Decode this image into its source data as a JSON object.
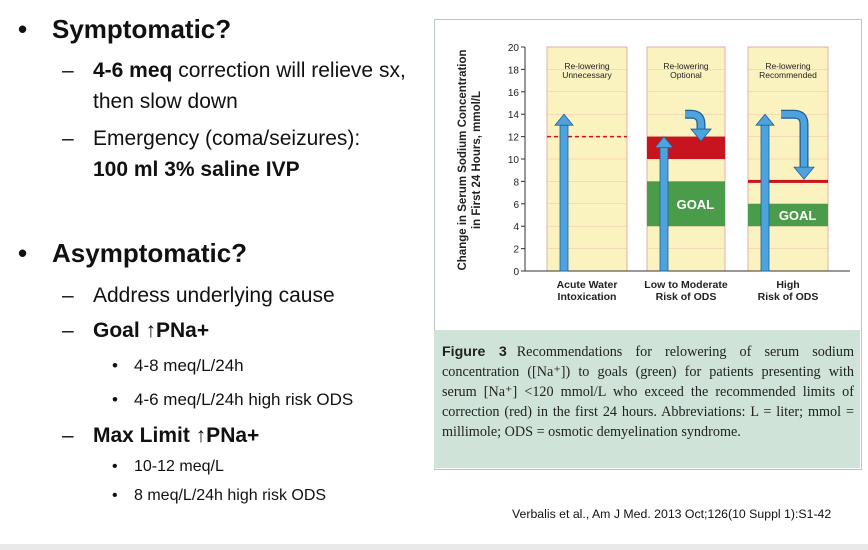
{
  "bullets": {
    "symptomatic": {
      "heading": "Symptomatic?",
      "items": [
        {
          "bold": "4-6 meq",
          "text": " correction will relieve sx, then slow down"
        },
        {
          "text": "Emergency (coma/seizures): ",
          "bold_after": "100 ml 3% saline IVP"
        }
      ]
    },
    "asymptomatic": {
      "heading": "Asymptomatic?",
      "item1": "Address underlying cause",
      "goal": {
        "label": "Goal ↑PNa+",
        "subs": [
          "4-8 meq/L/24h",
          "4-6 meq/L/24h high risk ODS"
        ]
      },
      "max": {
        "label": "Max Limit ↑PNa+",
        "subs": [
          "10-12 meq/L",
          "8 meq/L/24h high risk ODS"
        ]
      }
    },
    "bullet_glyph": "•",
    "dash_glyph": "–"
  },
  "chart_data": {
    "type": "bar",
    "ylabel": "Change in Serum Sodium Concentration in First 24 Hours, mmol/L",
    "ylabel_lines": [
      "Change in Serum Sodium Concentration",
      "in First 24 Hours, mmol/L"
    ],
    "ylim": [
      0,
      20
    ],
    "yticks": [
      "0",
      "2",
      "4",
      "6",
      "8",
      "10",
      "12",
      "14",
      "16",
      "18",
      "20"
    ],
    "categories": [
      {
        "lines": [
          "Acute Water",
          "Intoxication"
        ],
        "header": [
          "Re-lowering",
          "Unnecessary"
        ],
        "arrow_to": 14,
        "limit": 12,
        "limit_style": "dashed"
      },
      {
        "lines": [
          "Low to Moderate",
          "Risk of ODS"
        ],
        "header": [
          "Re-lowering",
          "Optional"
        ],
        "arrow_to": 12,
        "limit_band": [
          10,
          12
        ],
        "goal": [
          4,
          8
        ],
        "goal_label": "GOAL"
      },
      {
        "lines": [
          "High",
          "Risk of ODS"
        ],
        "header": [
          "Re-lowering",
          "Recommended"
        ],
        "arrow_to": 14,
        "limit_line": 8,
        "goal": [
          4,
          6
        ],
        "goal_label": "GOAL"
      }
    ],
    "colors": {
      "panel": "#fbf3bf",
      "goal": "#4a9c4a",
      "limit": "#c8141e",
      "arrow": "#4ea3df",
      "grid": "#e6a0a0"
    }
  },
  "figure": {
    "label": "Figure 3",
    "text": "Recommendations for relowering of serum sodium concentration ([Na⁺]) to goals (green) for patients presenting with serum [Na⁺] <120 mmol/L who exceed the recommended limits of correction (red) in the first 24 hours. Abbreviations: L = liter; mmol = millimole; ODS = osmotic demyelination syndrome."
  },
  "citation": "Verbalis et al., Am J Med. 2013 Oct;126(10 Suppl 1):S1-42"
}
